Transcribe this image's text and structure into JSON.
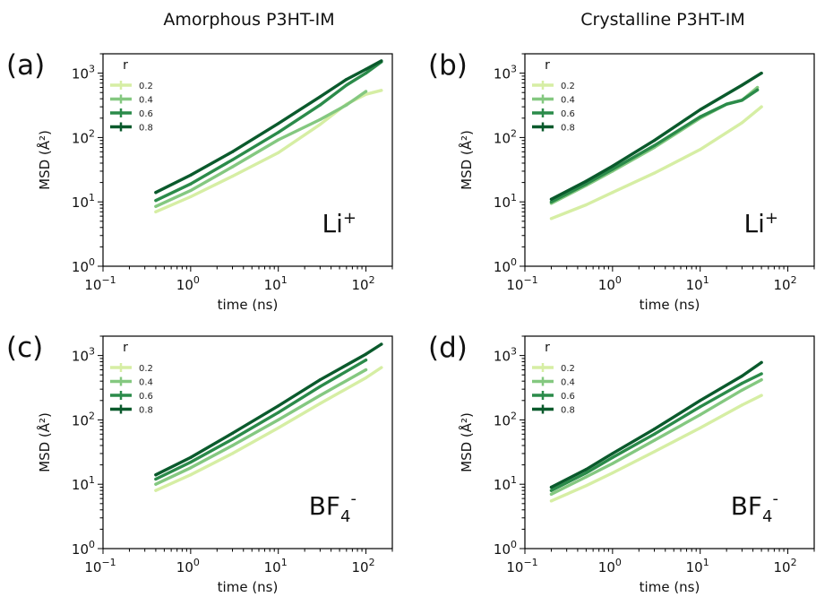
{
  "column_titles": [
    "Amorphous P3HT-IM",
    "Crystalline P3HT-IM"
  ],
  "colors": {
    "series": [
      "#d6eea4",
      "#84c880",
      "#2b8b4a",
      "#0a5a2c"
    ],
    "axes": "#000000"
  },
  "chart_data": [
    {
      "type": "line",
      "panel": "(a)",
      "column": "Amorphous P3HT-IM",
      "ion_label": {
        "base": "Li",
        "sup": "+",
        "sub": ""
      },
      "xlabel": "time (ns)",
      "ylabel": "MSD (Å²)",
      "xscale": "log",
      "yscale": "log",
      "xlim": [
        0.1,
        200
      ],
      "ylim": [
        1,
        2000
      ],
      "xticks": [
        "10^-1",
        "10^0",
        "10^1",
        "10^2"
      ],
      "yticks": [
        "10^0",
        "10^1",
        "10^2",
        "10^3"
      ],
      "legend": {
        "title": "r",
        "placement": "upper left"
      },
      "series": [
        {
          "name": "0.2",
          "x": [
            0.4,
            1,
            3,
            10,
            30,
            60,
            100,
            150
          ],
          "y": [
            7,
            12,
            25,
            58,
            160,
            330,
            470,
            540
          ]
        },
        {
          "name": "0.4",
          "x": [
            0.4,
            1,
            3,
            10,
            30,
            60,
            100
          ],
          "y": [
            8.5,
            15,
            35,
            92,
            190,
            320,
            520
          ]
        },
        {
          "name": "0.6",
          "x": [
            0.4,
            1,
            3,
            10,
            30,
            60,
            100,
            150
          ],
          "y": [
            10.5,
            19,
            45,
            120,
            320,
            650,
            1000,
            1500
          ]
        },
        {
          "name": "0.8",
          "x": [
            0.4,
            1,
            3,
            10,
            30,
            60,
            100,
            150
          ],
          "y": [
            14,
            26,
            60,
            165,
            430,
            800,
            1150,
            1550
          ]
        }
      ]
    },
    {
      "type": "line",
      "panel": "(b)",
      "column": "Crystalline P3HT-IM",
      "ion_label": {
        "base": "Li",
        "sup": "+",
        "sub": ""
      },
      "xlabel": "time (ns)",
      "ylabel": "MSD (Å²)",
      "xscale": "log",
      "yscale": "log",
      "xlim": [
        0.1,
        200
      ],
      "ylim": [
        1,
        2000
      ],
      "xticks": [
        "10^-1",
        "10^0",
        "10^1",
        "10^2"
      ],
      "yticks": [
        "10^0",
        "10^1",
        "10^2",
        "10^3"
      ],
      "legend": {
        "title": "r",
        "placement": "upper left"
      },
      "series": [
        {
          "name": "0.2",
          "x": [
            0.2,
            0.5,
            1,
            3,
            10,
            30,
            50
          ],
          "y": [
            5.5,
            9,
            14,
            28,
            65,
            170,
            300
          ]
        },
        {
          "name": "0.4",
          "x": [
            0.2,
            0.5,
            1,
            3,
            10,
            20,
            30,
            45
          ],
          "y": [
            9.5,
            18,
            30,
            70,
            200,
            330,
            380,
            600
          ]
        },
        {
          "name": "0.6",
          "x": [
            0.2,
            0.5,
            1,
            3,
            10,
            20,
            30,
            45
          ],
          "y": [
            10,
            19,
            32,
            75,
            210,
            330,
            380,
            550
          ]
        },
        {
          "name": "0.8",
          "x": [
            0.2,
            0.5,
            1,
            3,
            10,
            30,
            50
          ],
          "y": [
            11,
            21,
            36,
            90,
            270,
            650,
            1000
          ]
        }
      ]
    },
    {
      "type": "line",
      "panel": "(c)",
      "column": "Amorphous P3HT-IM",
      "ion_label": {
        "base": "BF",
        "sup": "-",
        "sub": "4"
      },
      "xlabel": "time (ns)",
      "ylabel": "MSD (Å²)",
      "xscale": "log",
      "yscale": "log",
      "xlim": [
        0.1,
        200
      ],
      "ylim": [
        1,
        2000
      ],
      "xticks": [
        "10^-1",
        "10^0",
        "10^1",
        "10^2"
      ],
      "yticks": [
        "10^0",
        "10^1",
        "10^2",
        "10^3"
      ],
      "legend": {
        "title": "r",
        "placement": "upper left"
      },
      "series": [
        {
          "name": "0.2",
          "x": [
            0.4,
            1,
            3,
            10,
            30,
            100,
            150
          ],
          "y": [
            8,
            14,
            30,
            75,
            180,
            450,
            650
          ]
        },
        {
          "name": "0.4",
          "x": [
            0.4,
            1,
            3,
            10,
            30,
            100
          ],
          "y": [
            10,
            18,
            40,
            100,
            240,
            600
          ]
        },
        {
          "name": "0.6",
          "x": [
            0.4,
            1,
            3,
            10,
            30,
            100
          ],
          "y": [
            12,
            22,
            50,
            130,
            330,
            850
          ]
        },
        {
          "name": "0.8",
          "x": [
            0.4,
            1,
            3,
            10,
            30,
            100,
            150
          ],
          "y": [
            14,
            26,
            62,
            165,
            420,
            1050,
            1500
          ]
        }
      ]
    },
    {
      "type": "line",
      "panel": "(d)",
      "column": "Crystalline P3HT-IM",
      "ion_label": {
        "base": "BF",
        "sup": "-",
        "sub": "4"
      },
      "xlabel": "time (ns)",
      "ylabel": "MSD (Å²)",
      "xscale": "log",
      "yscale": "log",
      "xlim": [
        0.1,
        200
      ],
      "ylim": [
        1,
        2000
      ],
      "xticks": [
        "10^-1",
        "10^0",
        "10^1",
        "10^2"
      ],
      "yticks": [
        "10^0",
        "10^1",
        "10^2",
        "10^3"
      ],
      "legend": {
        "title": "r",
        "placement": "upper left"
      },
      "series": [
        {
          "name": "0.2",
          "x": [
            0.2,
            0.5,
            1,
            3,
            10,
            30,
            50
          ],
          "y": [
            5.5,
            9.5,
            15,
            32,
            75,
            170,
            240
          ]
        },
        {
          "name": "0.4",
          "x": [
            0.2,
            0.5,
            1,
            3,
            10,
            30,
            50
          ],
          "y": [
            7,
            13,
            21,
            48,
            120,
            290,
            420
          ]
        },
        {
          "name": "0.6",
          "x": [
            0.2,
            0.5,
            1,
            3,
            10,
            30,
            50
          ],
          "y": [
            8,
            15,
            26,
            60,
            160,
            370,
            520
          ]
        },
        {
          "name": "0.8",
          "x": [
            0.2,
            0.5,
            1,
            3,
            10,
            30,
            50
          ],
          "y": [
            9,
            17,
            30,
            72,
            200,
            480,
            780
          ]
        }
      ]
    }
  ]
}
